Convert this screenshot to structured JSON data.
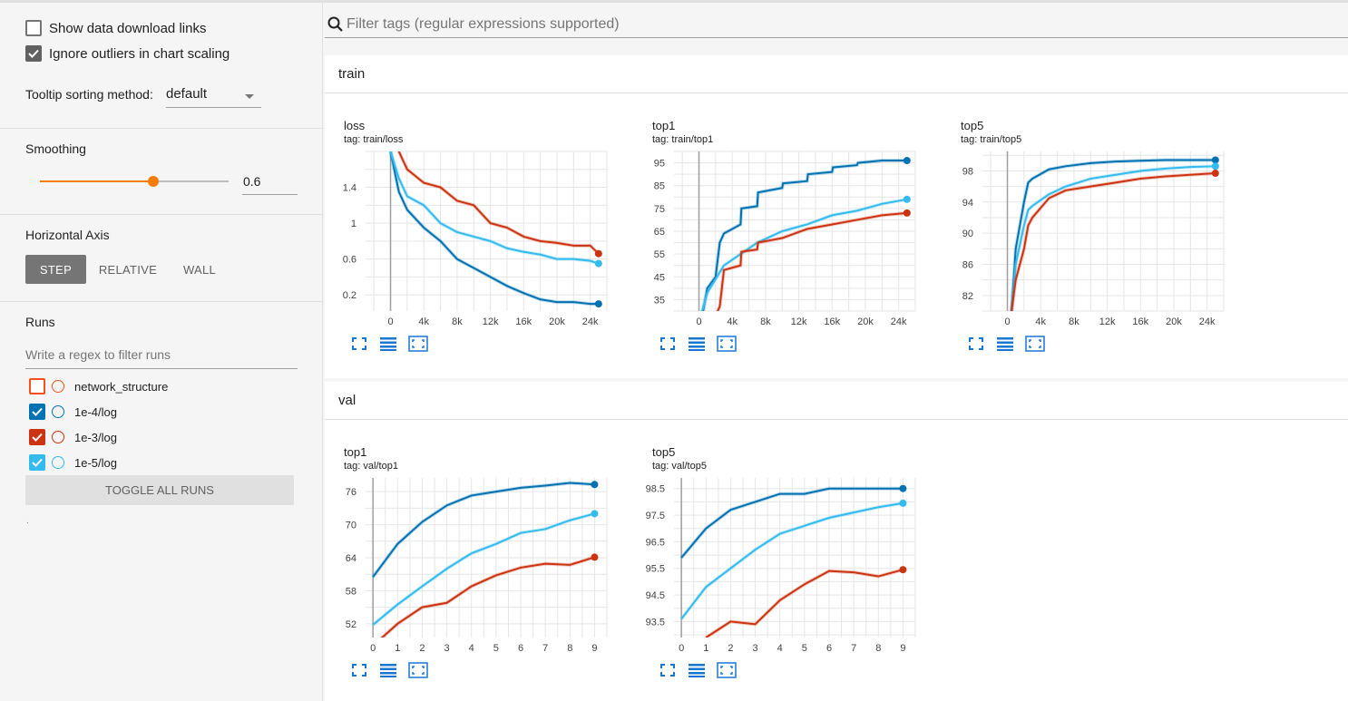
{
  "sidebar": {
    "show_download": "Show data download links",
    "ignore_outliers": "Ignore outliers in chart scaling",
    "tooltip_label": "Tooltip sorting method:",
    "tooltip_value": "default",
    "smoothing_label": "Smoothing",
    "smoothing_value": "0.6",
    "smoothing_fraction": 0.6,
    "haxis_label": "Horizontal Axis",
    "haxis_options": [
      "STEP",
      "RELATIVE",
      "WALL"
    ],
    "runs_label": "Runs",
    "runs_filter_placeholder": "Write a regex to filter runs",
    "runs": [
      {
        "name": "network_structure",
        "color": "#f4511e",
        "checked": false
      },
      {
        "name": "1e-4/log",
        "color": "#0072b2",
        "checked": true
      },
      {
        "name": "1e-3/log",
        "color": "#cc3311",
        "checked": true
      },
      {
        "name": "1e-5/log",
        "color": "#33bbee",
        "checked": true
      }
    ],
    "toggle_all": "TOGGLE ALL RUNS",
    "dot": "."
  },
  "search": {
    "placeholder": "Filter tags (regular expressions supported)"
  },
  "groups": [
    {
      "name": "train"
    },
    {
      "name": "val"
    }
  ],
  "colors": {
    "dark_blue": "#0072b2",
    "red": "#cc3311",
    "light_blue": "#33bbee",
    "accent": "#f57c00",
    "icon": "#1976d2"
  },
  "chart_data": [
    {
      "type": "line",
      "title": "loss",
      "tag": "tag: train/loss",
      "xticks": [
        "0",
        "4k",
        "8k",
        "12k",
        "16k",
        "20k",
        "24k"
      ],
      "xlim": [
        -3000,
        26000
      ],
      "yticks": [
        "1.4",
        "1",
        "0.6",
        "0.2"
      ],
      "ylim": [
        0.02,
        1.8
      ],
      "series": [
        {
          "color": "#0072b2",
          "x": [
            0,
            1000,
            2000,
            4000,
            6000,
            8000,
            10000,
            12000,
            14000,
            16000,
            18000,
            20000,
            22000,
            24000,
            25000
          ],
          "y": [
            1.8,
            1.35,
            1.15,
            0.95,
            0.8,
            0.6,
            0.5,
            0.4,
            0.3,
            0.22,
            0.15,
            0.12,
            0.12,
            0.1,
            0.1
          ]
        },
        {
          "color": "#33bbee",
          "x": [
            0,
            1000,
            2000,
            4000,
            6000,
            8000,
            10000,
            12000,
            14000,
            16000,
            18000,
            20000,
            22000,
            24000,
            25000
          ],
          "y": [
            1.8,
            1.5,
            1.3,
            1.2,
            1.0,
            0.9,
            0.85,
            0.8,
            0.72,
            0.68,
            0.65,
            0.6,
            0.6,
            0.58,
            0.55
          ]
        },
        {
          "color": "#cc3311",
          "x": [
            1000,
            2000,
            4000,
            6000,
            8000,
            10000,
            12000,
            14000,
            16000,
            18000,
            20000,
            22000,
            24000,
            25000
          ],
          "y": [
            1.8,
            1.6,
            1.45,
            1.4,
            1.25,
            1.2,
            1.0,
            0.95,
            0.85,
            0.8,
            0.78,
            0.75,
            0.75,
            0.66
          ]
        }
      ]
    },
    {
      "type": "line",
      "title": "top1",
      "tag": "tag: train/top1",
      "xticks": [
        "0",
        "4k",
        "8k",
        "12k",
        "16k",
        "20k",
        "24k"
      ],
      "xlim": [
        -3000,
        26000
      ],
      "yticks": [
        "95",
        "85",
        "75",
        "65",
        "55",
        "45",
        "35"
      ],
      "ylim": [
        30,
        100
      ],
      "series": [
        {
          "color": "#0072b2",
          "x": [
            0,
            1000,
            2000,
            2500,
            3000,
            5000,
            5100,
            7000,
            7100,
            10000,
            10100,
            13000,
            13100,
            16000,
            16100,
            19000,
            19100,
            22000,
            25000
          ],
          "y": [
            20,
            40,
            45,
            60,
            64,
            68,
            75,
            76,
            82,
            84,
            86,
            87,
            90,
            91,
            93,
            94,
            95,
            96,
            96
          ]
        },
        {
          "color": "#33bbee",
          "x": [
            0,
            1000,
            2000,
            3000,
            5000,
            7000,
            10000,
            13000,
            16000,
            19000,
            22000,
            25000
          ],
          "y": [
            25,
            38,
            44,
            50,
            55,
            60,
            65,
            68,
            72,
            74,
            77,
            79
          ]
        },
        {
          "color": "#cc3311",
          "x": [
            2000,
            2500,
            3000,
            5000,
            5100,
            7000,
            7100,
            10000,
            13000,
            16000,
            19000,
            22000,
            25000
          ],
          "y": [
            28,
            32,
            48,
            50,
            56,
            57,
            60,
            62,
            66,
            68,
            70,
            72,
            73
          ]
        }
      ]
    },
    {
      "type": "line",
      "title": "top5",
      "tag": "tag: train/top5",
      "xticks": [
        "0",
        "4k",
        "8k",
        "12k",
        "16k",
        "20k",
        "24k"
      ],
      "xlim": [
        -3000,
        26000
      ],
      "yticks": [
        "98",
        "94",
        "90",
        "86",
        "82"
      ],
      "ylim": [
        80,
        100.5
      ],
      "series": [
        {
          "color": "#0072b2",
          "x": [
            500,
            1000,
            2000,
            2500,
            3000,
            5000,
            7000,
            10000,
            13000,
            16000,
            19000,
            22000,
            25000
          ],
          "y": [
            80,
            88,
            94,
            96.5,
            97,
            98.2,
            98.6,
            99,
            99.2,
            99.3,
            99.4,
            99.4,
            99.4
          ]
        },
        {
          "color": "#33bbee",
          "x": [
            500,
            1000,
            2000,
            2500,
            3000,
            5000,
            7000,
            10000,
            13000,
            16000,
            19000,
            22000,
            25000
          ],
          "y": [
            80,
            86,
            91,
            93,
            93.5,
            95,
            96,
            97,
            97.5,
            98,
            98.3,
            98.5,
            98.6
          ]
        },
        {
          "color": "#cc3311",
          "x": [
            500,
            1000,
            2000,
            2500,
            3000,
            5000,
            7000,
            10000,
            13000,
            16000,
            19000,
            22000,
            25000
          ],
          "y": [
            80,
            84,
            88,
            91,
            92,
            94.5,
            95.5,
            96,
            96.5,
            97,
            97.3,
            97.5,
            97.7
          ]
        }
      ]
    },
    {
      "type": "line",
      "title": "top1",
      "tag": "tag: val/top1",
      "xticks": [
        "0",
        "1",
        "2",
        "3",
        "4",
        "5",
        "6",
        "7",
        "8",
        "9"
      ],
      "xlim": [
        -0.3,
        9.5
      ],
      "yticks": [
        "76",
        "70",
        "64",
        "58",
        "52"
      ],
      "ylim": [
        49.5,
        78.5
      ],
      "series": [
        {
          "color": "#0072b2",
          "x": [
            0,
            1,
            2,
            3,
            4,
            5,
            6,
            7,
            8,
            9
          ],
          "y": [
            60.5,
            66.5,
            70.5,
            73.5,
            75.3,
            76,
            76.7,
            77.1,
            77.6,
            77.3
          ]
        },
        {
          "color": "#33bbee",
          "x": [
            0,
            1,
            2,
            3,
            4,
            5,
            6,
            7,
            8,
            9
          ],
          "y": [
            51.8,
            55.5,
            58.8,
            62,
            64.8,
            66.5,
            68.5,
            69.2,
            70.8,
            72
          ]
        },
        {
          "color": "#cc3311",
          "x": [
            0,
            1,
            2,
            3,
            4,
            5,
            6,
            7,
            8,
            9
          ],
          "y": [
            48,
            52,
            55,
            55.8,
            58.8,
            60.8,
            62.2,
            62.9,
            62.7,
            64.1
          ]
        }
      ]
    },
    {
      "type": "line",
      "title": "top5",
      "tag": "tag: val/top5",
      "xticks": [
        "0",
        "1",
        "2",
        "3",
        "4",
        "5",
        "6",
        "7",
        "8",
        "9"
      ],
      "xlim": [
        -0.3,
        9.5
      ],
      "yticks": [
        "98.5",
        "97.5",
        "96.5",
        "95.5",
        "94.5",
        "93.5"
      ],
      "ylim": [
        92.9,
        98.9
      ],
      "series": [
        {
          "color": "#0072b2",
          "x": [
            0,
            1,
            2,
            3,
            4,
            5,
            6,
            7,
            8,
            9
          ],
          "y": [
            95.9,
            97,
            97.7,
            98,
            98.3,
            98.3,
            98.5,
            98.5,
            98.5,
            98.5
          ]
        },
        {
          "color": "#33bbee",
          "x": [
            0,
            1,
            2,
            3,
            4,
            5,
            6,
            7,
            8,
            9
          ],
          "y": [
            93.6,
            94.8,
            95.5,
            96.2,
            96.8,
            97.1,
            97.4,
            97.6,
            97.8,
            97.95
          ]
        },
        {
          "color": "#cc3311",
          "x": [
            1,
            2,
            3,
            4,
            5,
            6,
            7,
            8,
            9
          ],
          "y": [
            92.9,
            93.5,
            93.4,
            94.3,
            94.9,
            95.4,
            95.35,
            95.2,
            95.45
          ]
        }
      ]
    }
  ]
}
